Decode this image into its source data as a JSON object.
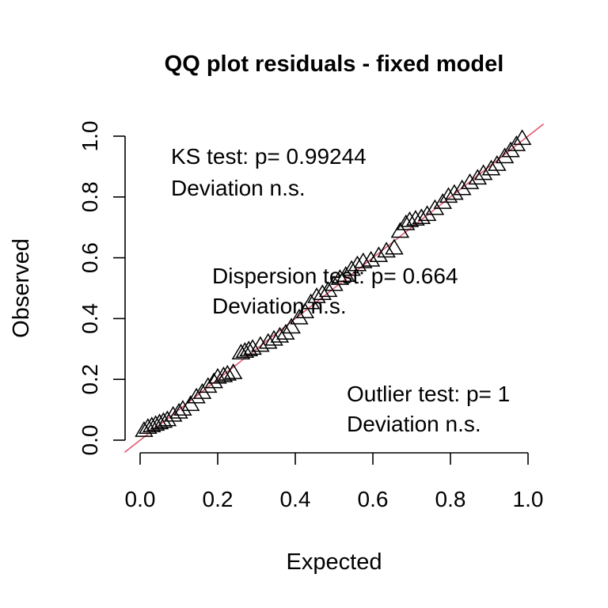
{
  "chart_data": {
    "type": "scatter",
    "title": "QQ plot residuals - fixed model",
    "xlabel": "Expected",
    "ylabel": "Observed",
    "xlim": [
      0,
      1
    ],
    "ylim": [
      0,
      1
    ],
    "x_ticks": [
      "0.0",
      "0.2",
      "0.4",
      "0.6",
      "0.8",
      "1.0"
    ],
    "y_ticks": [
      "0.0",
      "0.2",
      "0.4",
      "0.6",
      "0.8",
      "1.0"
    ],
    "marker": "triangle-open",
    "reference_line": {
      "intercept": 0,
      "slope": 1,
      "color": "#DF536B"
    },
    "annotations": [
      {
        "lines": [
          "KS test: p= 0.99244",
          "Deviation  n.s."
        ]
      },
      {
        "lines": [
          "Dispersion test: p= 0.664",
          "Deviation  n.s."
        ]
      },
      {
        "lines": [
          "Outlier test: p= 1",
          "Deviation  n.s."
        ]
      }
    ],
    "points": [
      [
        0.01,
        0.03
      ],
      [
        0.02,
        0.04
      ],
      [
        0.03,
        0.045
      ],
      [
        0.04,
        0.05
      ],
      [
        0.05,
        0.055
      ],
      [
        0.06,
        0.06
      ],
      [
        0.07,
        0.065
      ],
      [
        0.085,
        0.08
      ],
      [
        0.1,
        0.09
      ],
      [
        0.11,
        0.1
      ],
      [
        0.13,
        0.115
      ],
      [
        0.145,
        0.14
      ],
      [
        0.16,
        0.155
      ],
      [
        0.175,
        0.175
      ],
      [
        0.19,
        0.19
      ],
      [
        0.2,
        0.205
      ],
      [
        0.215,
        0.21
      ],
      [
        0.225,
        0.215
      ],
      [
        0.24,
        0.22
      ],
      [
        0.26,
        0.285
      ],
      [
        0.27,
        0.29
      ],
      [
        0.28,
        0.295
      ],
      [
        0.29,
        0.3
      ],
      [
        0.31,
        0.31
      ],
      [
        0.33,
        0.32
      ],
      [
        0.345,
        0.33
      ],
      [
        0.36,
        0.34
      ],
      [
        0.375,
        0.35
      ],
      [
        0.39,
        0.37
      ],
      [
        0.41,
        0.4
      ],
      [
        0.425,
        0.42
      ],
      [
        0.44,
        0.45
      ],
      [
        0.455,
        0.47
      ],
      [
        0.47,
        0.48
      ],
      [
        0.485,
        0.49
      ],
      [
        0.5,
        0.51
      ],
      [
        0.515,
        0.53
      ],
      [
        0.53,
        0.54
      ],
      [
        0.545,
        0.56
      ],
      [
        0.56,
        0.575
      ],
      [
        0.575,
        0.585
      ],
      [
        0.595,
        0.59
      ],
      [
        0.615,
        0.605
      ],
      [
        0.635,
        0.62
      ],
      [
        0.655,
        0.63
      ],
      [
        0.67,
        0.685
      ],
      [
        0.685,
        0.71
      ],
      [
        0.695,
        0.72
      ],
      [
        0.71,
        0.725
      ],
      [
        0.725,
        0.73
      ],
      [
        0.74,
        0.74
      ],
      [
        0.76,
        0.76
      ],
      [
        0.78,
        0.78
      ],
      [
        0.795,
        0.8
      ],
      [
        0.81,
        0.81
      ],
      [
        0.83,
        0.825
      ],
      [
        0.85,
        0.845
      ],
      [
        0.87,
        0.86
      ],
      [
        0.885,
        0.875
      ],
      [
        0.905,
        0.89
      ],
      [
        0.92,
        0.905
      ],
      [
        0.94,
        0.93
      ],
      [
        0.955,
        0.95
      ],
      [
        0.97,
        0.97
      ],
      [
        0.985,
        0.99
      ]
    ]
  }
}
